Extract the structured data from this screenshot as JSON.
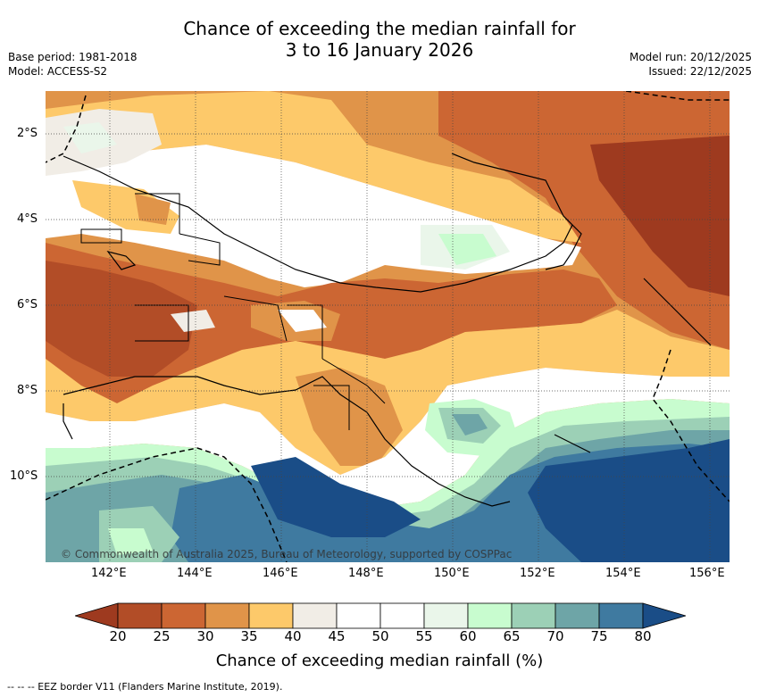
{
  "title_line1": "Chance of exceeding the median rainfall for",
  "title_line2": "3 to 16 January 2026",
  "base_period": "Base period: 1981-2018",
  "model": "Model: ACCESS-S2",
  "model_run": "Model run: 20/12/2025",
  "issued": "Issued: 22/12/2025",
  "copyright": "© Commonwealth of Australia 2025, Bureau of Meteorology, supported by COSPPac",
  "lat_labels": [
    "2°S",
    "4°S",
    "6°S",
    "8°S",
    "10°S"
  ],
  "lon_labels": [
    "142°E",
    "144°E",
    "146°E",
    "148°E",
    "150°E",
    "152°E",
    "154°E",
    "156°E"
  ],
  "colorbar": {
    "ticks": [
      "20",
      "25",
      "30",
      "35",
      "40",
      "45",
      "50",
      "55",
      "60",
      "65",
      "70",
      "75",
      "80"
    ],
    "colors": [
      "#9e3a1f",
      "#b24d27",
      "#cc6633",
      "#e09449",
      "#fdc96a",
      "#f1ede6",
      "#ffffff",
      "#ffffff",
      "#eaf6ea",
      "#c8fccf",
      "#9cd0b6",
      "#6ea5a7",
      "#3f7aa0",
      "#1a4d87"
    ],
    "label": "Chance of exceeding median rainfall (%)"
  },
  "legend_eez": "-- -- -- EEZ border V11 (Flanders Marine Institute, 2019)."
}
